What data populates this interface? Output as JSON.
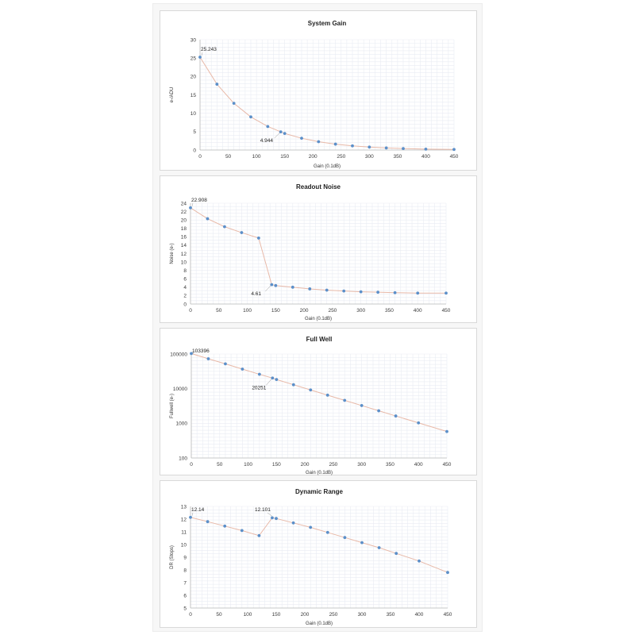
{
  "chart_data": [
    {
      "type": "line",
      "title": "System Gain",
      "xlabel": "Gain (0.1dB)",
      "ylabel": "e-/ADU",
      "xlim": [
        0,
        450
      ],
      "ylim": [
        0,
        30
      ],
      "log_y": false,
      "xticks": [
        "0",
        "50",
        "100",
        "150",
        "200",
        "250",
        "300",
        "350",
        "400",
        "450"
      ],
      "yticks": [
        "0",
        "5",
        "10",
        "15",
        "20",
        "25",
        "30"
      ],
      "grid": true,
      "series": [
        {
          "color": "#5b8fc9",
          "line_color": "#e8b9a8",
          "x": [
            0,
            30,
            60,
            90,
            120,
            143,
            150,
            180,
            210,
            240,
            270,
            300,
            330,
            360,
            400,
            450
          ],
          "y": [
            25.243,
            17.9,
            12.7,
            9.0,
            6.4,
            4.944,
            4.5,
            3.2,
            2.26,
            1.6,
            1.13,
            0.8,
            0.57,
            0.4,
            0.25,
            0.15
          ]
        }
      ],
      "annotations": [
        {
          "text": "25.243",
          "x": 0,
          "y": 25.243
        },
        {
          "text": "4.944",
          "x": 143,
          "y": 4.944
        }
      ]
    },
    {
      "type": "line",
      "title": "Readout Noise",
      "xlabel": "Gain (0.1dB)",
      "ylabel": "Noise (e-)",
      "xlim": [
        0,
        450
      ],
      "ylim": [
        0,
        24
      ],
      "log_y": false,
      "xticks": [
        "0",
        "50",
        "100",
        "150",
        "200",
        "250",
        "300",
        "350",
        "400",
        "450"
      ],
      "yticks": [
        "0",
        "2",
        "4",
        "6",
        "8",
        "10",
        "12",
        "14",
        "16",
        "18",
        "20",
        "22",
        "24"
      ],
      "grid": true,
      "series": [
        {
          "color": "#5b8fc9",
          "line_color": "#e8b9a8",
          "x": [
            0,
            30,
            60,
            90,
            120,
            143,
            150,
            180,
            210,
            240,
            270,
            300,
            330,
            360,
            400,
            450
          ],
          "y": [
            22.908,
            20.3,
            18.4,
            17.0,
            15.7,
            4.61,
            4.4,
            4.0,
            3.6,
            3.3,
            3.1,
            2.9,
            2.8,
            2.7,
            2.6,
            2.6
          ]
        }
      ],
      "annotations": [
        {
          "text": "22.908",
          "x": 0,
          "y": 22.908
        },
        {
          "text": "4.61",
          "x": 143,
          "y": 4.61
        }
      ]
    },
    {
      "type": "line",
      "title": "Full Well",
      "xlabel": "Gain (0.1dB)",
      "ylabel": "Fullwell (e-)",
      "xlim": [
        0,
        450
      ],
      "ylim": [
        100,
        100000
      ],
      "log_y": true,
      "xticks": [
        "0",
        "50",
        "100",
        "150",
        "200",
        "250",
        "300",
        "350",
        "400",
        "450"
      ],
      "yticks": [
        "100",
        "1000",
        "10000",
        "100000"
      ],
      "grid": true,
      "series": [
        {
          "color": "#5b8fc9",
          "line_color": "#e8b9a8",
          "x": [
            0,
            30,
            60,
            90,
            120,
            143,
            150,
            180,
            210,
            240,
            270,
            300,
            330,
            360,
            400,
            450
          ],
          "y": [
            103396,
            73000,
            52000,
            36700,
            26000,
            20251,
            18400,
            13000,
            9200,
            6500,
            4600,
            3260,
            2300,
            1630,
            1030,
            580
          ]
        }
      ],
      "annotations": [
        {
          "text": "103396",
          "x": 0,
          "y": 103396
        },
        {
          "text": "20251",
          "x": 143,
          "y": 20251
        }
      ]
    },
    {
      "type": "line",
      "title": "Dynamic Range",
      "xlabel": "Gain (0.1dB)",
      "ylabel": "DR (Stops)",
      "xlim": [
        0,
        450
      ],
      "ylim": [
        5,
        13
      ],
      "log_y": false,
      "xticks": [
        "0",
        "50",
        "100",
        "150",
        "200",
        "250",
        "300",
        "350",
        "400",
        "450"
      ],
      "yticks": [
        "5",
        "6",
        "7",
        "8",
        "9",
        "10",
        "11",
        "12",
        "13"
      ],
      "grid": true,
      "series": [
        {
          "color": "#5b8fc9",
          "line_color": "#e8b9a8",
          "x": [
            0,
            30,
            60,
            90,
            120,
            143,
            150,
            180,
            210,
            240,
            270,
            300,
            330,
            360,
            400,
            450
          ],
          "y": [
            12.14,
            11.8,
            11.45,
            11.1,
            10.7,
            12.101,
            12.05,
            11.7,
            11.35,
            10.95,
            10.55,
            10.15,
            9.75,
            9.3,
            8.7,
            7.8
          ]
        }
      ],
      "annotations": [
        {
          "text": "12.14",
          "x": 0,
          "y": 12.14
        },
        {
          "text": "12.101",
          "x": 143,
          "y": 12.101
        }
      ]
    }
  ]
}
